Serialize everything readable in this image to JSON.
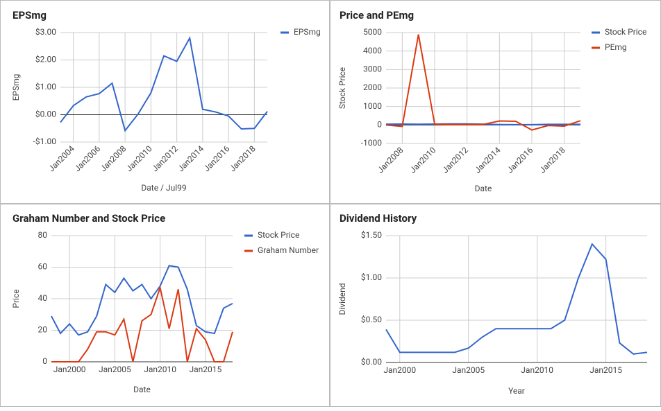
{
  "chart_data": [
    {
      "type": "line",
      "title": "EPSmg",
      "x_label": "Date / Jul99",
      "y_label": "EPSmg",
      "x": [
        2003,
        2004,
        2005,
        2006,
        2007,
        2008,
        2009,
        2010,
        2011,
        2012,
        2013,
        2014,
        2015,
        2016,
        2017,
        2018,
        2019
      ],
      "series": [
        {
          "name": "EPSmg",
          "color": "#3366cc",
          "values": [
            -0.28,
            0.33,
            0.65,
            0.77,
            1.15,
            -0.58,
            0.02,
            0.8,
            2.15,
            1.95,
            2.8,
            0.2,
            0.1,
            -0.05,
            -0.52,
            -0.5,
            0.12
          ]
        }
      ],
      "xlim": [
        2003,
        2019
      ],
      "xticks": [
        {
          "value": 2004,
          "label": "Jan2004"
        },
        {
          "value": 2006,
          "label": "Jan2006"
        },
        {
          "value": 2008,
          "label": "Jan2008"
        },
        {
          "value": 2010,
          "label": "Jan2010"
        },
        {
          "value": 2012,
          "label": "Jan2012"
        },
        {
          "value": 2014,
          "label": "Jan2014"
        },
        {
          "value": 2016,
          "label": "Jan2016"
        },
        {
          "value": 2018,
          "label": "Jan2018"
        }
      ],
      "ylim": [
        -1,
        3
      ],
      "yticks": [
        {
          "value": -1,
          "label": "-$1.00"
        },
        {
          "value": 0,
          "label": "$0.00"
        },
        {
          "value": 1,
          "label": "$1.00"
        },
        {
          "value": 2,
          "label": "$2.00"
        },
        {
          "value": 3,
          "label": "$3.00"
        }
      ],
      "grid": true,
      "legend": "right"
    },
    {
      "type": "line",
      "title": "Price and PEmg",
      "x_label": "Date",
      "y_label": "Stock Price",
      "x": [
        2007,
        2008,
        2009,
        2010,
        2011,
        2012,
        2013,
        2014,
        2015,
        2016,
        2017,
        2018,
        2019
      ],
      "series": [
        {
          "name": "Stock Price",
          "color": "#3366cc",
          "values": [
            45,
            49,
            40,
            48,
            61,
            60,
            46,
            23,
            19,
            18,
            34,
            37,
            37
          ]
        },
        {
          "name": "PEmg",
          "color": "#dc3912",
          "values": [
            0,
            -80,
            4900,
            50,
            20,
            30,
            30,
            220,
            200,
            -270,
            -30,
            -60,
            230
          ]
        }
      ],
      "xlim": [
        2007,
        2019
      ],
      "xticks": [
        {
          "value": 2008,
          "label": "Jan2008"
        },
        {
          "value": 2010,
          "label": "Jan2010"
        },
        {
          "value": 2012,
          "label": "Jan2012"
        },
        {
          "value": 2014,
          "label": "Jan2014"
        },
        {
          "value": 2016,
          "label": "Jan2016"
        },
        {
          "value": 2018,
          "label": "Jan2018"
        }
      ],
      "ylim": [
        -1000,
        5000
      ],
      "yticks": [
        -1000,
        0,
        1000,
        2000,
        3000,
        4000,
        5000
      ],
      "grid": true,
      "legend": "right"
    },
    {
      "type": "line",
      "title": "Graham Number and Stock Price",
      "x_label": "Date",
      "y_label": "Price",
      "x": [
        1998,
        1999,
        2000,
        2001,
        2002,
        2003,
        2004,
        2005,
        2006,
        2007,
        2008,
        2009,
        2010,
        2011,
        2012,
        2013,
        2014,
        2015,
        2016,
        2017,
        2018
      ],
      "series": [
        {
          "name": "Stock Price",
          "color": "#3366cc",
          "values": [
            29,
            18,
            24,
            17,
            19,
            29,
            49,
            44,
            53,
            45,
            49,
            40,
            48,
            61,
            60,
            46,
            23,
            19,
            18,
            34,
            37
          ]
        },
        {
          "name": "Graham Number",
          "color": "#dc3912",
          "values": [
            0,
            0,
            0,
            0,
            8,
            19,
            19,
            17,
            27,
            0,
            26,
            30,
            47,
            21,
            46,
            0,
            21,
            14,
            0,
            0,
            19
          ]
        }
      ],
      "xlim": [
        1998,
        2018
      ],
      "xticks": [
        {
          "value": 2000,
          "label": "Jan2000"
        },
        {
          "value": 2005,
          "label": "Jan2005"
        },
        {
          "value": 2010,
          "label": "Jan2010"
        },
        {
          "value": 2015,
          "label": "Jan2015"
        }
      ],
      "ylim": [
        0,
        80
      ],
      "yticks": [
        0,
        20,
        40,
        60,
        80
      ],
      "grid": true,
      "legend": "right"
    },
    {
      "type": "line",
      "title": "Dividend History",
      "x_label": "Year",
      "y_label": "Dividend",
      "x": [
        1999,
        2000,
        2001,
        2002,
        2003,
        2004,
        2005,
        2006,
        2007,
        2008,
        2009,
        2010,
        2011,
        2012,
        2013,
        2014,
        2015,
        2016,
        2017,
        2018
      ],
      "series": [
        {
          "name": "Dividend",
          "color": "#3366cc",
          "values": [
            0.39,
            0.12,
            0.12,
            0.12,
            0.12,
            0.12,
            0.17,
            0.3,
            0.4,
            0.4,
            0.4,
            0.4,
            0.4,
            0.5,
            1.0,
            1.4,
            1.22,
            0.23,
            0.1,
            0.12
          ]
        }
      ],
      "xlim": [
        1999,
        2018
      ],
      "xticks": [
        {
          "value": 2000,
          "label": "Jan2000"
        },
        {
          "value": 2005,
          "label": "Jan2005"
        },
        {
          "value": 2010,
          "label": "Jan2010"
        },
        {
          "value": 2015,
          "label": "Jan2015"
        }
      ],
      "ylim": [
        0,
        1.5
      ],
      "yticks": [
        {
          "value": 0,
          "label": "$0.00"
        },
        {
          "value": 0.5,
          "label": "$0.50"
        },
        {
          "value": 1,
          "label": "$1.00"
        },
        {
          "value": 1.5,
          "label": "$1.50"
        }
      ],
      "grid": true,
      "legend": "none"
    }
  ]
}
